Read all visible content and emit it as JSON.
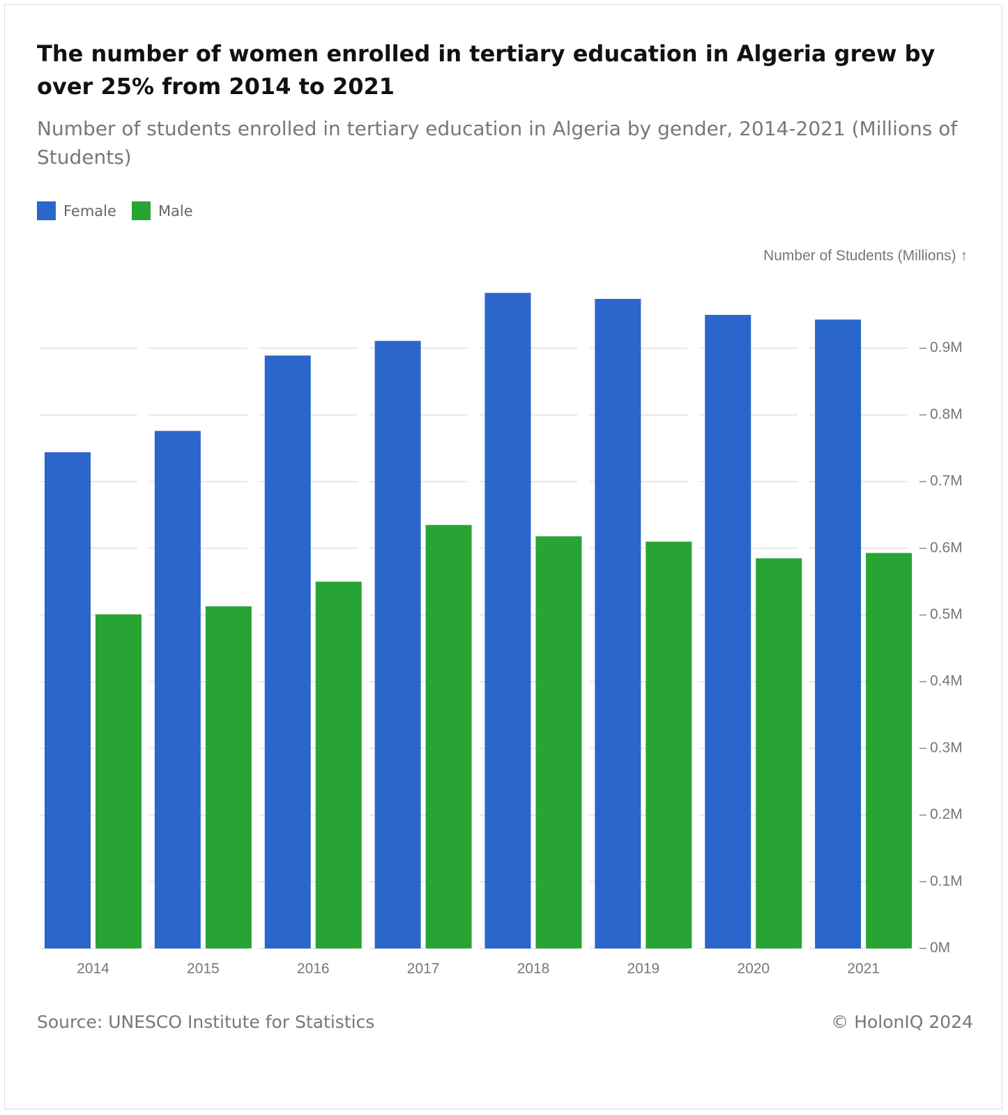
{
  "chart_data": {
    "type": "bar",
    "title": "The number of women enrolled in tertiary education in Algeria grew by over 25% from 2014 to 2021",
    "subtitle": "Number of students enrolled in tertiary education in Algeria by gender, 2014-2021 (Millions of Students)",
    "y_axis_label": "Number of Students (Millions) ↑",
    "categories": [
      "2014",
      "2015",
      "2016",
      "2017",
      "2018",
      "2019",
      "2020",
      "2021"
    ],
    "series": [
      {
        "name": "Female",
        "color": "#2a66cc",
        "values": [
          0.744,
          0.776,
          0.889,
          0.911,
          0.983,
          0.974,
          0.95,
          0.943
        ]
      },
      {
        "name": "Male",
        "color": "#28a435",
        "values": [
          0.501,
          0.513,
          0.55,
          0.635,
          0.618,
          0.61,
          0.585,
          0.593
        ]
      }
    ],
    "ylim": [
      0,
      1.0
    ],
    "yticks": [
      {
        "value": 0,
        "label": "0M"
      },
      {
        "value": 0.1,
        "label": "0.1M"
      },
      {
        "value": 0.2,
        "label": "0.2M"
      },
      {
        "value": 0.3,
        "label": "0.3M"
      },
      {
        "value": 0.4,
        "label": "0.4M"
      },
      {
        "value": 0.5,
        "label": "0.5M"
      },
      {
        "value": 0.6,
        "label": "0.6M"
      },
      {
        "value": 0.7,
        "label": "0.7M"
      },
      {
        "value": 0.8,
        "label": "0.8M"
      },
      {
        "value": 0.9,
        "label": "0.9M"
      }
    ],
    "grid": true,
    "legend": "top-left",
    "source": "Source: UNESCO Institute for Statistics",
    "copyright": "© HolonIQ 2024"
  }
}
